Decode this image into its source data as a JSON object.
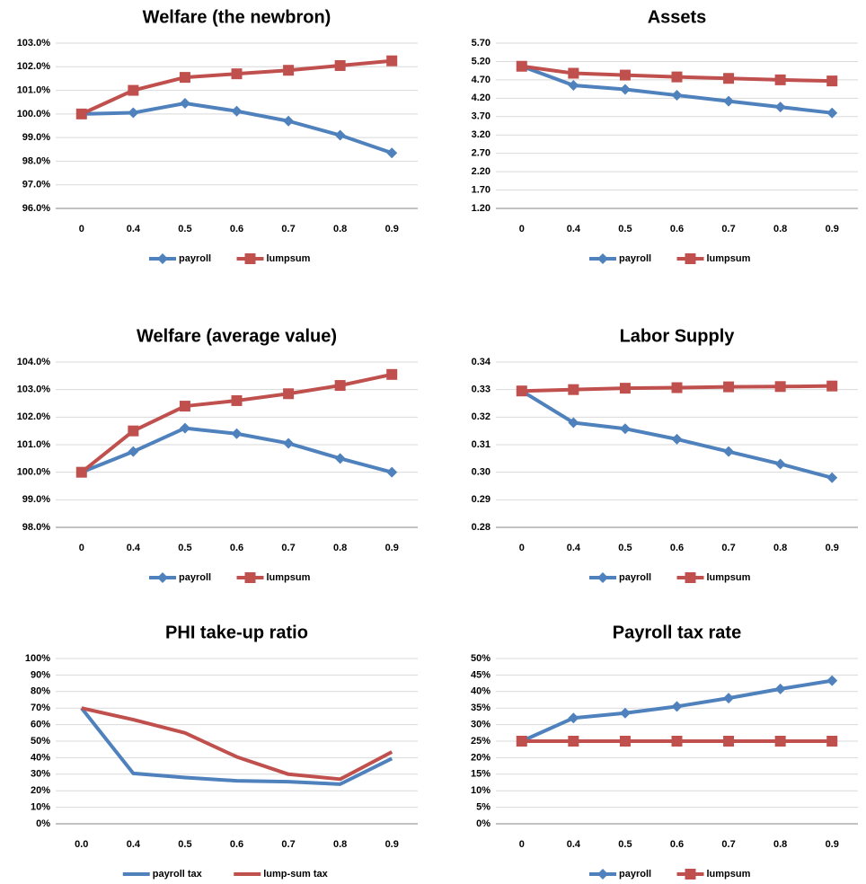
{
  "chart_data": [
    {
      "type": "line",
      "title": "Welfare (the newbron)",
      "categories": [
        "0",
        "0.4",
        "0.5",
        "0.6",
        "0.7",
        "0.8",
        "0.9"
      ],
      "series": [
        {
          "name": "payroll",
          "color": "#4f81bd",
          "marker": "diamond",
          "values": [
            100,
            100.05,
            100.45,
            100.12,
            99.7,
            99.1,
            98.35
          ]
        },
        {
          "name": "lumpsum",
          "color": "#c0504d",
          "marker": "square",
          "values": [
            100,
            101,
            101.55,
            101.7,
            101.85,
            102.05,
            102.25
          ]
        }
      ],
      "ylim": [
        96,
        103
      ],
      "yticks": [
        {
          "value": 96,
          "label": "96.0%"
        },
        {
          "value": 97,
          "label": "97.0%"
        },
        {
          "value": 98,
          "label": "98.0%"
        },
        {
          "value": 99,
          "label": "99.0%"
        },
        {
          "value": 100,
          "label": "100.0%"
        },
        {
          "value": 101,
          "label": "101.0%"
        },
        {
          "value": 102,
          "label": "102.0%"
        },
        {
          "value": 103,
          "label": "103.0%"
        }
      ],
      "grid": true,
      "legend": "bottom"
    },
    {
      "type": "line",
      "title": "Assets",
      "categories": [
        "0",
        "0.4",
        "0.5",
        "0.6",
        "0.7",
        "0.8",
        "0.9"
      ],
      "series": [
        {
          "name": "payroll",
          "color": "#4f81bd",
          "marker": "diamond",
          "values": [
            5.07,
            4.55,
            4.44,
            4.28,
            4.12,
            3.96,
            3.8
          ]
        },
        {
          "name": "lumpsum",
          "color": "#c0504d",
          "marker": "square",
          "values": [
            5.07,
            4.88,
            4.83,
            4.78,
            4.74,
            4.7,
            4.67
          ]
        }
      ],
      "ylim": [
        1.2,
        5.7
      ],
      "yticks": [
        {
          "value": 1.2,
          "label": "1.20"
        },
        {
          "value": 1.7,
          "label": "1.70"
        },
        {
          "value": 2.2,
          "label": "2.20"
        },
        {
          "value": 2.7,
          "label": "2.70"
        },
        {
          "value": 3.2,
          "label": "3.20"
        },
        {
          "value": 3.7,
          "label": "3.70"
        },
        {
          "value": 4.2,
          "label": "4.20"
        },
        {
          "value": 4.7,
          "label": "4.70"
        },
        {
          "value": 5.2,
          "label": "5.20"
        },
        {
          "value": 5.7,
          "label": "5.70"
        }
      ],
      "grid": true,
      "legend": "bottom"
    },
    {
      "type": "line",
      "title": "Welfare (average value)",
      "categories": [
        "0",
        "0.4",
        "0.5",
        "0.6",
        "0.7",
        "0.8",
        "0.9"
      ],
      "series": [
        {
          "name": "payroll",
          "color": "#4f81bd",
          "marker": "diamond",
          "values": [
            100,
            100.75,
            101.6,
            101.4,
            101.05,
            100.5,
            100
          ]
        },
        {
          "name": "lumpsum",
          "color": "#c0504d",
          "marker": "square",
          "values": [
            100,
            101.5,
            102.4,
            102.6,
            102.85,
            103.15,
            103.55
          ]
        }
      ],
      "ylim": [
        98,
        104
      ],
      "yticks": [
        {
          "value": 98,
          "label": "98.0%"
        },
        {
          "value": 99,
          "label": "99.0%"
        },
        {
          "value": 100,
          "label": "100.0%"
        },
        {
          "value": 101,
          "label": "101.0%"
        },
        {
          "value": 102,
          "label": "102.0%"
        },
        {
          "value": 103,
          "label": "103.0%"
        },
        {
          "value": 104,
          "label": "104.0%"
        }
      ],
      "grid": true,
      "legend": "bottom"
    },
    {
      "type": "line",
      "title": "Labor Supply",
      "categories": [
        "0",
        "0.4",
        "0.5",
        "0.6",
        "0.7",
        "0.8",
        "0.9"
      ],
      "series": [
        {
          "name": "payroll",
          "color": "#4f81bd",
          "marker": "diamond",
          "values": [
            0.3295,
            0.318,
            0.3158,
            0.312,
            0.3075,
            0.303,
            0.298
          ]
        },
        {
          "name": "lumpsum",
          "color": "#c0504d",
          "marker": "square",
          "values": [
            0.3295,
            0.33,
            0.3305,
            0.3307,
            0.331,
            0.3311,
            0.3313
          ]
        }
      ],
      "ylim": [
        0.28,
        0.34
      ],
      "yticks": [
        {
          "value": 0.28,
          "label": "0.28"
        },
        {
          "value": 0.29,
          "label": "0.29"
        },
        {
          "value": 0.3,
          "label": "0.30"
        },
        {
          "value": 0.31,
          "label": "0.31"
        },
        {
          "value": 0.32,
          "label": "0.32"
        },
        {
          "value": 0.33,
          "label": "0.33"
        },
        {
          "value": 0.34,
          "label": "0.34"
        }
      ],
      "grid": true,
      "legend": "bottom"
    },
    {
      "type": "line",
      "title": "PHI take-up ratio",
      "categories": [
        "0.0",
        "0.4",
        "0.5",
        "0.6",
        "0.7",
        "0.8",
        "0.9"
      ],
      "series": [
        {
          "name": "payroll tax",
          "color": "#4f81bd",
          "marker": "none",
          "values": [
            70,
            30.5,
            28,
            26,
            25.5,
            24,
            39.5
          ]
        },
        {
          "name": "lump-sum tax",
          "color": "#c0504d",
          "marker": "none",
          "values": [
            70,
            63,
            55,
            40.5,
            30,
            27,
            43.5
          ]
        }
      ],
      "ylim": [
        0,
        100
      ],
      "yticks": [
        {
          "value": 0,
          "label": "0%"
        },
        {
          "value": 10,
          "label": "10%"
        },
        {
          "value": 20,
          "label": "20%"
        },
        {
          "value": 30,
          "label": "30%"
        },
        {
          "value": 40,
          "label": "40%"
        },
        {
          "value": 50,
          "label": "50%"
        },
        {
          "value": 60,
          "label": "60%"
        },
        {
          "value": 70,
          "label": "70%"
        },
        {
          "value": 80,
          "label": "80%"
        },
        {
          "value": 90,
          "label": "90%"
        },
        {
          "value": 100,
          "label": "100%"
        }
      ],
      "grid": true,
      "legend": "bottom"
    },
    {
      "type": "line",
      "title": "Payroll tax rate",
      "categories": [
        "0",
        "0.4",
        "0.5",
        "0.6",
        "0.7",
        "0.8",
        "0.9"
      ],
      "series": [
        {
          "name": "payroll",
          "color": "#4f81bd",
          "marker": "diamond",
          "values": [
            25,
            32,
            33.5,
            35.5,
            38,
            40.8,
            43.3
          ]
        },
        {
          "name": "lumpsum",
          "color": "#c0504d",
          "marker": "square",
          "values": [
            25,
            25,
            25,
            25,
            25,
            25,
            25
          ]
        }
      ],
      "ylim": [
        0,
        50
      ],
      "yticks": [
        {
          "value": 0,
          "label": "0%"
        },
        {
          "value": 5,
          "label": "5%"
        },
        {
          "value": 10,
          "label": "10%"
        },
        {
          "value": 15,
          "label": "15%"
        },
        {
          "value": 20,
          "label": "20%"
        },
        {
          "value": 25,
          "label": "25%"
        },
        {
          "value": 30,
          "label": "30%"
        },
        {
          "value": 35,
          "label": "35%"
        },
        {
          "value": 40,
          "label": "40%"
        },
        {
          "value": 45,
          "label": "45%"
        },
        {
          "value": 50,
          "label": "50%"
        }
      ],
      "grid": true,
      "legend": "bottom"
    }
  ]
}
